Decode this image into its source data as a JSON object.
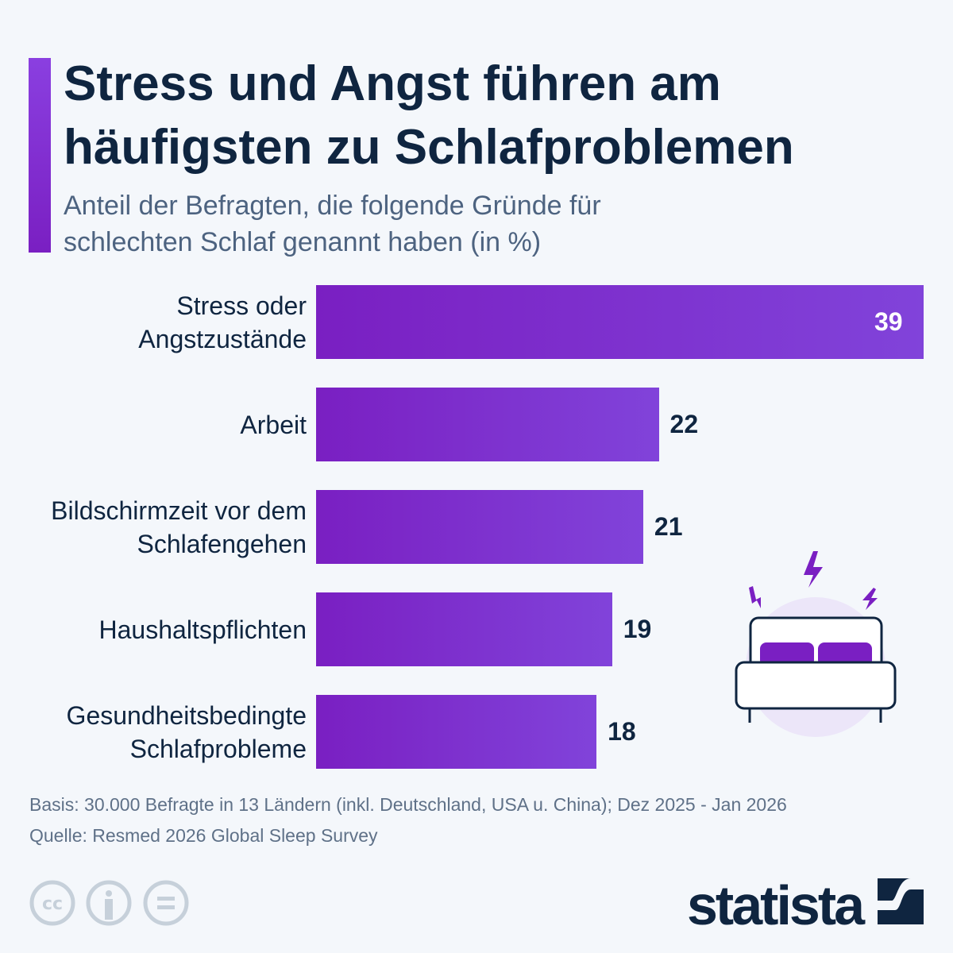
{
  "title": "Stress und Angst führen am häufigsten zu Schlafproblemen",
  "subtitle": "Anteil der Befragten, die folgende Gründe für schlechten Schlaf genannt haben (in %)",
  "colors": {
    "bar": "#7a1fc2",
    "text": "#0f2540",
    "accent": "#8a3fe0"
  },
  "chart_data": {
    "type": "bar",
    "orientation": "horizontal",
    "categories": [
      "Stress oder Angstzustände",
      "Arbeit",
      "Bildschirmzeit vor dem Schlafengehen",
      "Haushaltspflichten",
      "Gesundheitsbedingte Schlafprobleme"
    ],
    "values": [
      39,
      22,
      21,
      19,
      18
    ],
    "xlim": [
      0,
      39
    ],
    "grid": false
  },
  "labels": [
    "39",
    "22",
    "21",
    "19",
    "18"
  ],
  "footer": {
    "basis": "Basis: 30.000 Befragte in 13 Ländern (inkl. Deutschland, USA u. China); Dez 2025 - Jan 2026",
    "source": "Quelle: Resmed 2026 Global Sleep Survey"
  },
  "icons": [
    "cc-icon",
    "by-icon",
    "nd-icon",
    "bed-icon"
  ],
  "brand": "statista"
}
